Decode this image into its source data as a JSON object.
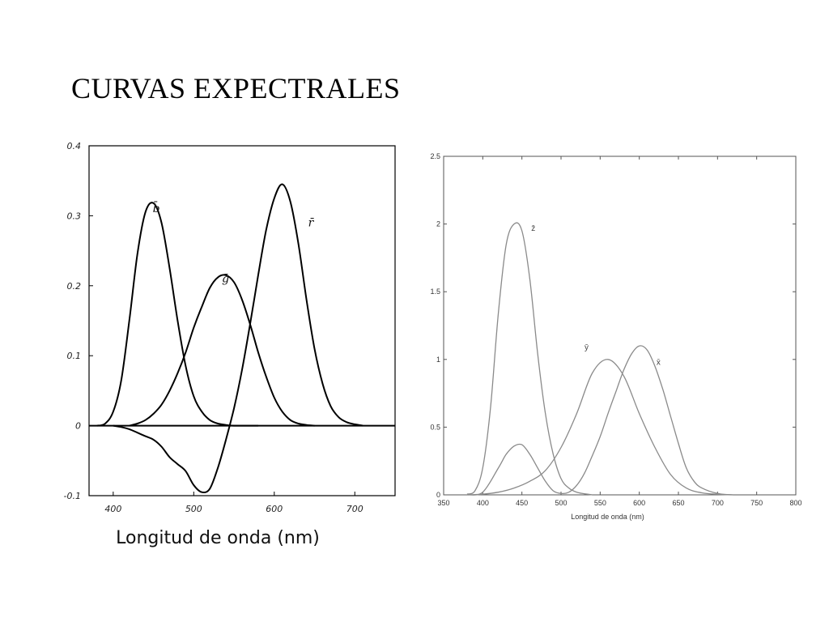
{
  "slide": {
    "title": "CURVAS EXPECTRALES"
  },
  "chart_data": [
    {
      "type": "line",
      "xlabel": "Longitud de onda (nm)",
      "xlim": [
        370,
        750
      ],
      "ylim": [
        -0.1,
        0.4
      ],
      "x_ticks": [
        400,
        500,
        600,
        700
      ],
      "y_ticks": [
        -0.1,
        0,
        0.1,
        0.2,
        0.3,
        0.4
      ],
      "x_tick_labels": [
        "400",
        "500",
        "600",
        "700"
      ],
      "y_tick_labels": [
        "-0.1",
        "0",
        "0.1",
        "0.2",
        "0.3",
        "0.4"
      ],
      "line_color": "#000000",
      "zero_line": true,
      "series": [
        {
          "name": "b̄",
          "x": [
            380,
            390,
            400,
            410,
            420,
            430,
            440,
            450,
            460,
            470,
            480,
            490,
            500,
            510,
            520,
            530,
            540,
            550,
            560,
            570,
            580
          ],
          "values": [
            0.0,
            0.003,
            0.02,
            0.065,
            0.15,
            0.245,
            0.305,
            0.318,
            0.29,
            0.225,
            0.15,
            0.085,
            0.042,
            0.02,
            0.008,
            0.003,
            0.001,
            0.0,
            0.0,
            0.0,
            0.0
          ]
        },
        {
          "name": "ḡ",
          "x": [
            420,
            430,
            440,
            450,
            460,
            470,
            480,
            490,
            500,
            510,
            520,
            530,
            540,
            550,
            560,
            570,
            580,
            590,
            600,
            610,
            620,
            630,
            640,
            650
          ],
          "values": [
            0.0,
            0.003,
            0.008,
            0.017,
            0.03,
            0.05,
            0.075,
            0.105,
            0.14,
            0.17,
            0.197,
            0.212,
            0.215,
            0.205,
            0.18,
            0.145,
            0.105,
            0.07,
            0.04,
            0.02,
            0.008,
            0.003,
            0.001,
            0.0
          ]
        },
        {
          "name": "r̄",
          "x": [
            400,
            410,
            420,
            430,
            440,
            450,
            460,
            470,
            480,
            490,
            500,
            510,
            520,
            530,
            540,
            550,
            560,
            570,
            580,
            590,
            600,
            610,
            620,
            630,
            640,
            650,
            660,
            670,
            680,
            690,
            700,
            710
          ],
          "values": [
            0.0,
            -0.002,
            -0.005,
            -0.01,
            -0.015,
            -0.02,
            -0.03,
            -0.045,
            -0.055,
            -0.065,
            -0.085,
            -0.095,
            -0.09,
            -0.06,
            -0.02,
            0.025,
            0.08,
            0.145,
            0.215,
            0.28,
            0.325,
            0.345,
            0.32,
            0.26,
            0.18,
            0.11,
            0.06,
            0.028,
            0.012,
            0.005,
            0.002,
            0.0
          ]
        }
      ],
      "curve_labels": [
        "b̄",
        "ḡ",
        "r̄"
      ]
    },
    {
      "type": "line",
      "xlabel": "Longitud de onda (nm)",
      "xlim": [
        350,
        800
      ],
      "ylim": [
        0,
        2.5
      ],
      "x_ticks": [
        350,
        400,
        450,
        500,
        550,
        600,
        650,
        700,
        750,
        800
      ],
      "y_ticks": [
        0,
        0.5,
        1,
        1.5,
        2,
        2.5
      ],
      "x_tick_labels": [
        "350",
        "400",
        "450",
        "500",
        "550",
        "600",
        "650",
        "700",
        "750",
        "800"
      ],
      "y_tick_labels": [
        "0",
        "0.5",
        "1",
        "1.5",
        "2",
        "2.5"
      ],
      "line_color": "#8a8a8a",
      "series": [
        {
          "name": "z̄",
          "x": [
            380,
            390,
            400,
            410,
            420,
            430,
            440,
            450,
            460,
            470,
            480,
            490,
            500,
            510,
            520,
            530,
            540
          ],
          "values": [
            0.006,
            0.03,
            0.2,
            0.65,
            1.35,
            1.85,
            2.0,
            1.95,
            1.6,
            1.05,
            0.6,
            0.3,
            0.12,
            0.05,
            0.02,
            0.008,
            0.0
          ]
        },
        {
          "name": "ȳ",
          "x": [
            380,
            400,
            420,
            440,
            460,
            480,
            500,
            520,
            540,
            560,
            580,
            600,
            620,
            640,
            660,
            680,
            700,
            720
          ],
          "values": [
            0.0,
            0.005,
            0.02,
            0.05,
            0.1,
            0.18,
            0.35,
            0.6,
            0.9,
            1.0,
            0.88,
            0.6,
            0.35,
            0.15,
            0.05,
            0.015,
            0.004,
            0.0
          ]
        },
        {
          "name": "x̄",
          "x": [
            380,
            400,
            420,
            430,
            440,
            450,
            460,
            470,
            480,
            490,
            500,
            510,
            520,
            530,
            540,
            550,
            560,
            570,
            580,
            590,
            600,
            610,
            620,
            630,
            640,
            650,
            660,
            670,
            680,
            700,
            720
          ],
          "values": [
            0.0,
            0.02,
            0.2,
            0.3,
            0.36,
            0.37,
            0.3,
            0.2,
            0.1,
            0.03,
            0.01,
            0.02,
            0.07,
            0.16,
            0.29,
            0.43,
            0.6,
            0.76,
            0.92,
            1.04,
            1.1,
            1.07,
            0.95,
            0.78,
            0.58,
            0.38,
            0.2,
            0.1,
            0.05,
            0.01,
            0.0
          ]
        }
      ],
      "curve_labels": [
        "z̄",
        "ȳ",
        "x̄"
      ]
    }
  ]
}
